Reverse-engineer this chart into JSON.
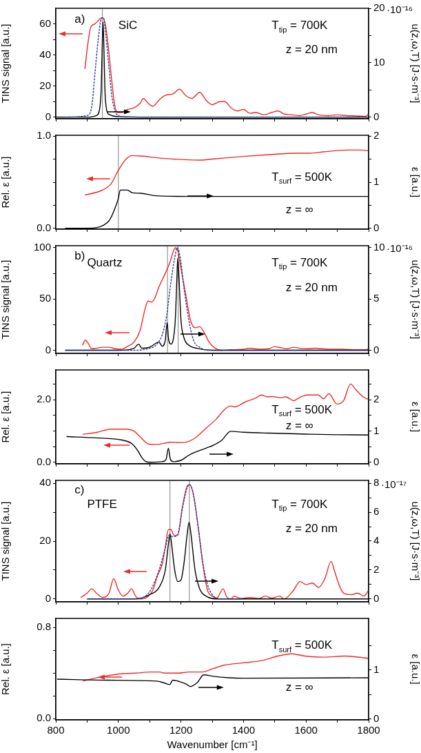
{
  "chart_data": [
    {
      "type": "line",
      "ylabel": "TINS signal [a.u.]",
      "y2label": "u(z,ω,T) [J·s·m⁻³]",
      "tick_labels": "y",
      "xlim": [
        800,
        1800
      ],
      "xticks": [
        800,
        {
          "value": 900,
          "label": null
        },
        1000,
        {
          "value": 1100,
          "label": null
        },
        1200,
        {
          "value": 1300,
          "label": null
        },
        1400,
        {
          "value": 1500,
          "label": null
        },
        1600,
        {
          "value": 1700,
          "label": null
        },
        1800
      ],
      "ylim": [
        -1,
        70
      ],
      "yticks": [
        0,
        {
          "value": 10,
          "label": null
        },
        20,
        {
          "value": 30,
          "label": null
        },
        40,
        {
          "value": 50,
          "label": null
        },
        60
      ],
      "y2lim": [
        -0.3,
        20
      ],
      "y2ticks": [
        0,
        {
          "value": 5,
          "label": null
        },
        10,
        {
          "value": 15,
          "label": null
        },
        20
      ],
      "ref_lines": [
        {
          "axis": "x",
          "value": 949,
          "color": "#808080"
        }
      ],
      "annotations": [
        "a)",
        "SiC",
        "T$_{tip}$ = 700K",
        "z = 20 nm",
        "·10⁻¹⁶"
      ],
      "series": [
        {
          "color": "#ee2a24",
          "axis": "y",
          "x": [
            893,
            903,
            912,
            925,
            940,
            948,
            958,
            968,
            978,
            988,
            998,
            1010,
            1030,
            1050,
            1070,
            1080,
            1095,
            1110,
            1130,
            1150,
            1175,
            1195,
            1215,
            1235,
            1260,
            1280,
            1300,
            1325,
            1340,
            1360,
            1380,
            1400,
            1420,
            1440,
            1465,
            1490,
            1510,
            1530,
            1555,
            1580,
            1600,
            1620,
            1640,
            1670,
            1700,
            1730,
            1760,
            1790,
            1800
          ],
          "values": [
            31,
            48,
            58,
            60,
            63,
            64,
            60,
            45,
            25,
            8,
            3,
            3,
            5,
            6,
            9,
            12,
            9,
            7,
            11,
            14,
            15,
            18,
            14,
            12,
            16,
            11,
            8,
            10,
            10,
            6,
            4,
            5,
            2.5,
            3,
            1.5,
            3,
            4,
            2,
            1.5,
            1,
            2,
            3,
            1.5,
            1,
            1.5,
            1,
            0.8,
            0.5,
            2
          ]
        },
        {
          "color": "#000000",
          "axis": "y2",
          "x": [
            800,
            900,
            930,
            940,
            945,
            948,
            951,
            954,
            957,
            962,
            970,
            1000,
            1100,
            1800
          ],
          "values": [
            0,
            0,
            0.3,
            1.5,
            5,
            12,
            17.5,
            12,
            5,
            1.5,
            0.5,
            0.1,
            0,
            0
          ]
        },
        {
          "color": "#2a3d9e",
          "axis": "y2",
          "line_style": "dashed",
          "x": [
            830,
            900,
            915,
            925,
            935,
            945,
            952,
            960,
            970,
            980,
            990,
            1000,
            1020,
            1800
          ],
          "values": [
            0,
            0.3,
            2,
            8,
            14,
            18,
            18.3,
            15,
            9,
            3.5,
            1,
            0.3,
            0,
            0
          ]
        }
      ]
    },
    {
      "type": "line",
      "ylabel": "Rel. ε [a.u.]",
      "y2label": "ε [a.u.]",
      "tick_labels": "y",
      "xlim": [
        800,
        1800
      ],
      "xticks": [
        800,
        {
          "value": 900,
          "label": null
        },
        1000,
        {
          "value": 1100,
          "label": null
        },
        1200,
        {
          "value": 1300,
          "label": null
        },
        1400,
        {
          "value": 1500,
          "label": null
        },
        1600,
        {
          "value": 1700,
          "label": null
        },
        1800
      ],
      "ylim": [
        -0.01,
        1.01
      ],
      "yticks": [
        {
          "value": 0,
          "label": "0.0"
        },
        {
          "value": 0.25,
          "label": null
        },
        {
          "value": 0.5,
          "label": null
        },
        {
          "value": 0.75,
          "label": null
        },
        {
          "value": 1,
          "label": "1.0"
        }
      ],
      "y2lim": [
        -0.02,
        2.02
      ],
      "y2ticks": [
        0,
        {
          "value": 0.5,
          "label": null
        },
        1,
        {
          "value": 1.5,
          "label": null
        },
        2
      ],
      "ref_lines": [
        {
          "axis": "x",
          "value": 1000,
          "color": "#808080"
        }
      ],
      "annotations": [
        "T$_{surf}$ = 500K",
        "z = ∞"
      ],
      "series": [
        {
          "color": "#ee2a24",
          "axis": "y",
          "x": [
            893,
            946,
            976,
            1000,
            1024,
            1045,
            1071,
            1140,
            1260,
            1312,
            1398,
            1484,
            1570,
            1613,
            1656,
            1733,
            1776,
            1800
          ],
          "values": [
            0.36,
            0.41,
            0.48,
            0.63,
            0.75,
            0.79,
            0.785,
            0.76,
            0.74,
            0.755,
            0.78,
            0.8,
            0.815,
            0.815,
            0.83,
            0.85,
            0.85,
            0.84
          ]
        },
        {
          "color": "#000000",
          "axis": "y2",
          "x": [
            830,
            908,
            951,
            972,
            989,
            1000,
            1006,
            1028,
            1045,
            1071,
            1114,
            1226,
            1398,
            1800
          ],
          "values": [
            0,
            0,
            0.06,
            0.18,
            0.43,
            0.65,
            0.83,
            0.83,
            0.77,
            0.76,
            0.71,
            0.69,
            0.69,
            0.69
          ]
        }
      ]
    },
    {
      "type": "line",
      "ylabel": "TINS signal [a.u.]",
      "y2label": "u(z,ω,T) [J·s·m⁻³]",
      "tick_labels": "y",
      "xlim": [
        800,
        1800
      ],
      "xticks": [
        800,
        {
          "value": 900,
          "label": null
        },
        1000,
        {
          "value": 1100,
          "label": null
        },
        1200,
        {
          "value": 1300,
          "label": null
        },
        1400,
        {
          "value": 1500,
          "label": null
        },
        1600,
        {
          "value": 1700,
          "label": null
        },
        1800
      ],
      "ylim": [
        -3,
        102
      ],
      "yticks": [
        0,
        {
          "value": 25,
          "label": null
        },
        50,
        {
          "value": 75,
          "label": null
        },
        100
      ],
      "y2lim": [
        -0.3,
        10.2
      ],
      "y2ticks": [
        0,
        {
          "value": 2.5,
          "label": null
        },
        5,
        {
          "value": 7.5,
          "label": null
        },
        10
      ],
      "ref_lines": [
        {
          "axis": "x",
          "value": 1157,
          "color": "#808080"
        },
        {
          "axis": "x",
          "value": 1191,
          "color": "#808080"
        }
      ],
      "annotations": [
        "b)",
        "Quartz",
        "T$_{tip}$ = 700K",
        "z = 20 nm",
        "·10⁻¹⁶"
      ],
      "series": [
        {
          "color": "#ee2a24",
          "axis": "y",
          "x": [
            885,
            895,
            905,
            915,
            930,
            950,
            970,
            990,
            1010,
            1030,
            1050,
            1070,
            1085,
            1095,
            1105,
            1115,
            1130,
            1150,
            1165,
            1175,
            1182,
            1190,
            1200,
            1215,
            1230,
            1245,
            1260,
            1275,
            1290,
            1310,
            1330,
            1360,
            1400,
            1420,
            1450,
            1480,
            1500,
            1520,
            1540,
            1560,
            1580,
            1600,
            1630,
            1650,
            1680,
            1720,
            1760,
            1790,
            1800
          ],
          "values": [
            5,
            10,
            6,
            1.5,
            2,
            3,
            3,
            1.5,
            1,
            4,
            8,
            20,
            40,
            48,
            47,
            50,
            62,
            75,
            86,
            96,
            100,
            97,
            80,
            55,
            30,
            22,
            23,
            17,
            8,
            2,
            0,
            0.5,
            1,
            2,
            1,
            1.5,
            3.5,
            2.5,
            1.5,
            3,
            2,
            1.5,
            2,
            1.5,
            1,
            1,
            0.5,
            0.5,
            1.5
          ]
        },
        {
          "color": "#000000",
          "axis": "y2",
          "x": [
            830,
            1000,
            1050,
            1065,
            1075,
            1100,
            1130,
            1140,
            1150,
            1156,
            1160,
            1168,
            1175,
            1182,
            1187,
            1190,
            1194,
            1200,
            1210,
            1225,
            1250,
            1300,
            1800
          ],
          "values": [
            0,
            0,
            0.2,
            0.6,
            0.2,
            0.3,
            0.8,
            0.4,
            1,
            2.7,
            1.2,
            0.6,
            1,
            3,
            7,
            9,
            7,
            3,
            1.2,
            0.5,
            0.2,
            0,
            0
          ]
        },
        {
          "color": "#2a3d9e",
          "axis": "y2",
          "line_style": "dashed",
          "x": [
            830,
            1050,
            1100,
            1120,
            1140,
            1155,
            1165,
            1180,
            1188,
            1198,
            1210,
            1225,
            1240,
            1260,
            1290,
            1800
          ],
          "values": [
            0,
            0,
            0.2,
            0.5,
            1.5,
            3.5,
            6,
            9,
            10,
            9,
            6,
            3,
            1,
            0.3,
            0,
            0
          ]
        }
      ]
    },
    {
      "type": "line",
      "ylabel": "Rel. ε [a.u.]",
      "y2label": "ε [a.u.]",
      "tick_labels": "y",
      "xlim": [
        800,
        1800
      ],
      "xticks": [
        800,
        {
          "value": 900,
          "label": null
        },
        1000,
        {
          "value": 1100,
          "label": null
        },
        1200,
        {
          "value": 1300,
          "label": null
        },
        1400,
        {
          "value": 1500,
          "label": null
        },
        1600,
        {
          "value": 1700,
          "label": null
        },
        1800
      ],
      "ylim": [
        -0.05,
        2.95
      ],
      "yticks": [
        {
          "value": 0,
          "label": "0.0"
        },
        {
          "value": 0.5,
          "label": null
        },
        {
          "value": 1,
          "label": null
        },
        {
          "value": 1.5,
          "label": null
        },
        {
          "value": 2,
          "label": "2.0"
        },
        {
          "value": 2.5,
          "label": null
        }
      ],
      "y2lim": [
        -0.05,
        2.95
      ],
      "y2ticks": [
        0,
        {
          "value": 0.5,
          "label": null
        },
        1,
        {
          "value": 1.5,
          "label": null
        },
        2,
        {
          "value": 2.5,
          "label": null
        }
      ],
      "annotations": [
        "T$_{surf}$ = 500K",
        "z = ∞"
      ],
      "series": [
        {
          "color": "#ee2a24",
          "axis": "y",
          "x": [
            886,
            933,
            976,
            1028,
            1049,
            1071,
            1097,
            1123,
            1166,
            1209,
            1243,
            1277,
            1312,
            1338,
            1359,
            1372,
            1406,
            1441,
            1457,
            1475,
            1492,
            1518,
            1535,
            1561,
            1578,
            1604,
            1639,
            1656,
            1673,
            1699,
            1720,
            1742,
            1759,
            1781,
            1800
          ],
          "values": [
            0.89,
            0.96,
            1.06,
            1.06,
            1.0,
            0.8,
            0.58,
            0.57,
            0.64,
            0.63,
            0.76,
            1.06,
            1.37,
            1.67,
            1.8,
            1.77,
            1.93,
            2.06,
            2.15,
            2.09,
            2.1,
            2.06,
            2.09,
            1.97,
            2.06,
            2.15,
            2.15,
            2.03,
            2.19,
            1.86,
            1.97,
            2.5,
            2.32,
            2.1,
            2.0
          ]
        },
        {
          "color": "#000000",
          "axis": "y2",
          "x": [
            834,
            925,
            1011,
            1045,
            1062,
            1075,
            1088,
            1100,
            1140,
            1152,
            1160,
            1166,
            1175,
            1200,
            1226,
            1280,
            1303,
            1330,
            1359,
            1400,
            1484,
            1600,
            1700,
            1800
          ],
          "values": [
            0.82,
            0.78,
            0.71,
            0.58,
            0.37,
            0.15,
            0.02,
            0,
            0.02,
            0.08,
            0.45,
            0.1,
            0.02,
            0.06,
            0.23,
            0.45,
            0.54,
            0.7,
            0.99,
            0.96,
            0.93,
            0.9,
            0.88,
            0.87
          ]
        }
      ]
    },
    {
      "type": "line",
      "ylabel": "TINS signal [a.u.]",
      "y2label": "u(z,ω,T) [J·s·m⁻³]",
      "tick_labels": "y",
      "xlim": [
        800,
        1800
      ],
      "xticks": [
        800,
        {
          "value": 900,
          "label": null
        },
        1000,
        {
          "value": 1100,
          "label": null
        },
        1200,
        {
          "value": 1300,
          "label": null
        },
        1400,
        {
          "value": 1500,
          "label": null
        },
        1600,
        {
          "value": 1700,
          "label": null
        },
        1800
      ],
      "ylim": [
        -1,
        41
      ],
      "yticks": [
        0,
        {
          "value": 10,
          "label": null
        },
        20,
        {
          "value": 30,
          "label": null
        },
        40
      ],
      "y2lim": [
        -0.2,
        8.2
      ],
      "y2ticks": [
        0,
        {
          "value": 1,
          "label": null
        },
        2,
        {
          "value": 3,
          "label": null
        },
        4,
        {
          "value": 5,
          "label": null
        },
        6,
        {
          "value": 7,
          "label": null
        },
        8
      ],
      "ref_lines": [
        {
          "axis": "x",
          "value": 1165,
          "color": "#808080"
        },
        {
          "axis": "x",
          "value": 1227,
          "color": "#808080"
        }
      ],
      "annotations": [
        "c)",
        "PTFE",
        "T$_{tip}$ = 700K",
        "z = 20 nm",
        "·10⁻¹⁷"
      ],
      "series": [
        {
          "color": "#ee2a24",
          "axis": "y",
          "x": [
            880,
            900,
            915,
            930,
            950,
            970,
            985,
            1000,
            1015,
            1030,
            1042,
            1055,
            1070,
            1090,
            1110,
            1125,
            1140,
            1150,
            1160,
            1168,
            1178,
            1190,
            1205,
            1220,
            1228,
            1240,
            1255,
            1270,
            1285,
            1300,
            1315,
            1325,
            1335,
            1345,
            1360,
            1370,
            1390,
            1420,
            1450,
            1470,
            1490,
            1515,
            1530,
            1560,
            1580,
            1600,
            1620,
            1640,
            1660,
            1680,
            1690,
            1705,
            1720,
            1745,
            1765,
            1785,
            1800
          ],
          "values": [
            0.5,
            2,
            3.5,
            2,
            0.5,
            2,
            7,
            3,
            1,
            2,
            3.5,
            1,
            0,
            0.5,
            3,
            8,
            12,
            18,
            24,
            24,
            22,
            22,
            32,
            39,
            39.5,
            36,
            25,
            12,
            3,
            1,
            0.3,
            2,
            3.5,
            1,
            0,
            1,
            0.2,
            0.5,
            0.2,
            1,
            0.3,
            1,
            0,
            3,
            6,
            5,
            5.5,
            4,
            7,
            13,
            10,
            5,
            2,
            1.5,
            2,
            1,
            3
          ]
        },
        {
          "color": "#000000",
          "axis": "y2",
          "x": [
            900,
            1050,
            1100,
            1130,
            1150,
            1160,
            1165,
            1170,
            1180,
            1190,
            1200,
            1210,
            1220,
            1226,
            1232,
            1245,
            1260,
            1280,
            1320,
            1400,
            1800
          ],
          "values": [
            0,
            0,
            0.3,
            0.8,
            2,
            3.8,
            4.5,
            3.8,
            2,
            1.2,
            1.3,
            2.5,
            4.5,
            5.3,
            4.5,
            2,
            0.7,
            0.2,
            0,
            0,
            0
          ]
        },
        {
          "color": "#2a3d9e",
          "axis": "y2",
          "line_style": "dashed",
          "x": [
            900,
            1050,
            1100,
            1130,
            1150,
            1162,
            1175,
            1190,
            1205,
            1220,
            1228,
            1240,
            1255,
            1270,
            1285,
            1300,
            1330,
            1400
          ],
          "values": [
            0,
            0,
            0.5,
            2,
            3.5,
            4.4,
            4.3,
            4.5,
            6.3,
            7.7,
            7.9,
            7.2,
            5,
            2.5,
            1,
            0.3,
            0,
            0
          ]
        }
      ]
    },
    {
      "type": "line",
      "xlabel": "Wavenumber [cm⁻¹]",
      "ylabel": "Rel. ε [a.u.]",
      "y2label": "ε [a.u.]",
      "xlim": [
        800,
        1800
      ],
      "xticks": [
        800,
        {
          "value": 900,
          "label": null
        },
        1000,
        {
          "value": 1100,
          "label": null
        },
        1200,
        {
          "value": 1300,
          "label": null
        },
        1400,
        {
          "value": 1500,
          "label": null
        },
        1600,
        {
          "value": 1700,
          "label": null
        },
        1800
      ],
      "ylim": [
        -0.01,
        0.88
      ],
      "yticks": [
        {
          "value": 0,
          "label": "0.0"
        },
        {
          "value": 0.2,
          "label": null
        },
        {
          "value": 0.4,
          "label": null
        },
        {
          "value": 0.6,
          "label": null
        },
        0.8
      ],
      "y2lim": [
        -0.023,
        2.055
      ],
      "y2ticks": [
        0,
        {
          "value": 0.5,
          "label": null
        },
        1,
        {
          "value": 1.5,
          "label": null
        }
      ],
      "annotations": [
        "T$_{surf}$ = 500K",
        "z = ∞"
      ],
      "series": [
        {
          "color": "#ee2a24",
          "axis": "y",
          "x": [
            886,
            933,
            994,
            1054,
            1105,
            1131,
            1148,
            1191,
            1226,
            1269,
            1303,
            1338,
            1398,
            1458,
            1510,
            1553,
            1596,
            1656,
            1725,
            1800
          ],
          "values": [
            0.33,
            0.36,
            0.39,
            0.4,
            0.41,
            0.41,
            0.4,
            0.4,
            0.41,
            0.41,
            0.44,
            0.47,
            0.49,
            0.51,
            0.55,
            0.57,
            0.55,
            0.54,
            0.55,
            0.53
          ]
        },
        {
          "color": "#000000",
          "axis": "y2",
          "x": [
            804,
            968,
            1123,
            1148,
            1164,
            1174,
            1196,
            1217,
            1230,
            1252,
            1273,
            1303,
            1355,
            1398,
            1800
          ],
          "values": [
            0.81,
            0.79,
            0.77,
            0.73,
            0.7,
            0.79,
            0.76,
            0.71,
            0.66,
            0.74,
            0.9,
            0.87,
            0.84,
            0.83,
            0.84
          ]
        }
      ]
    }
  ]
}
